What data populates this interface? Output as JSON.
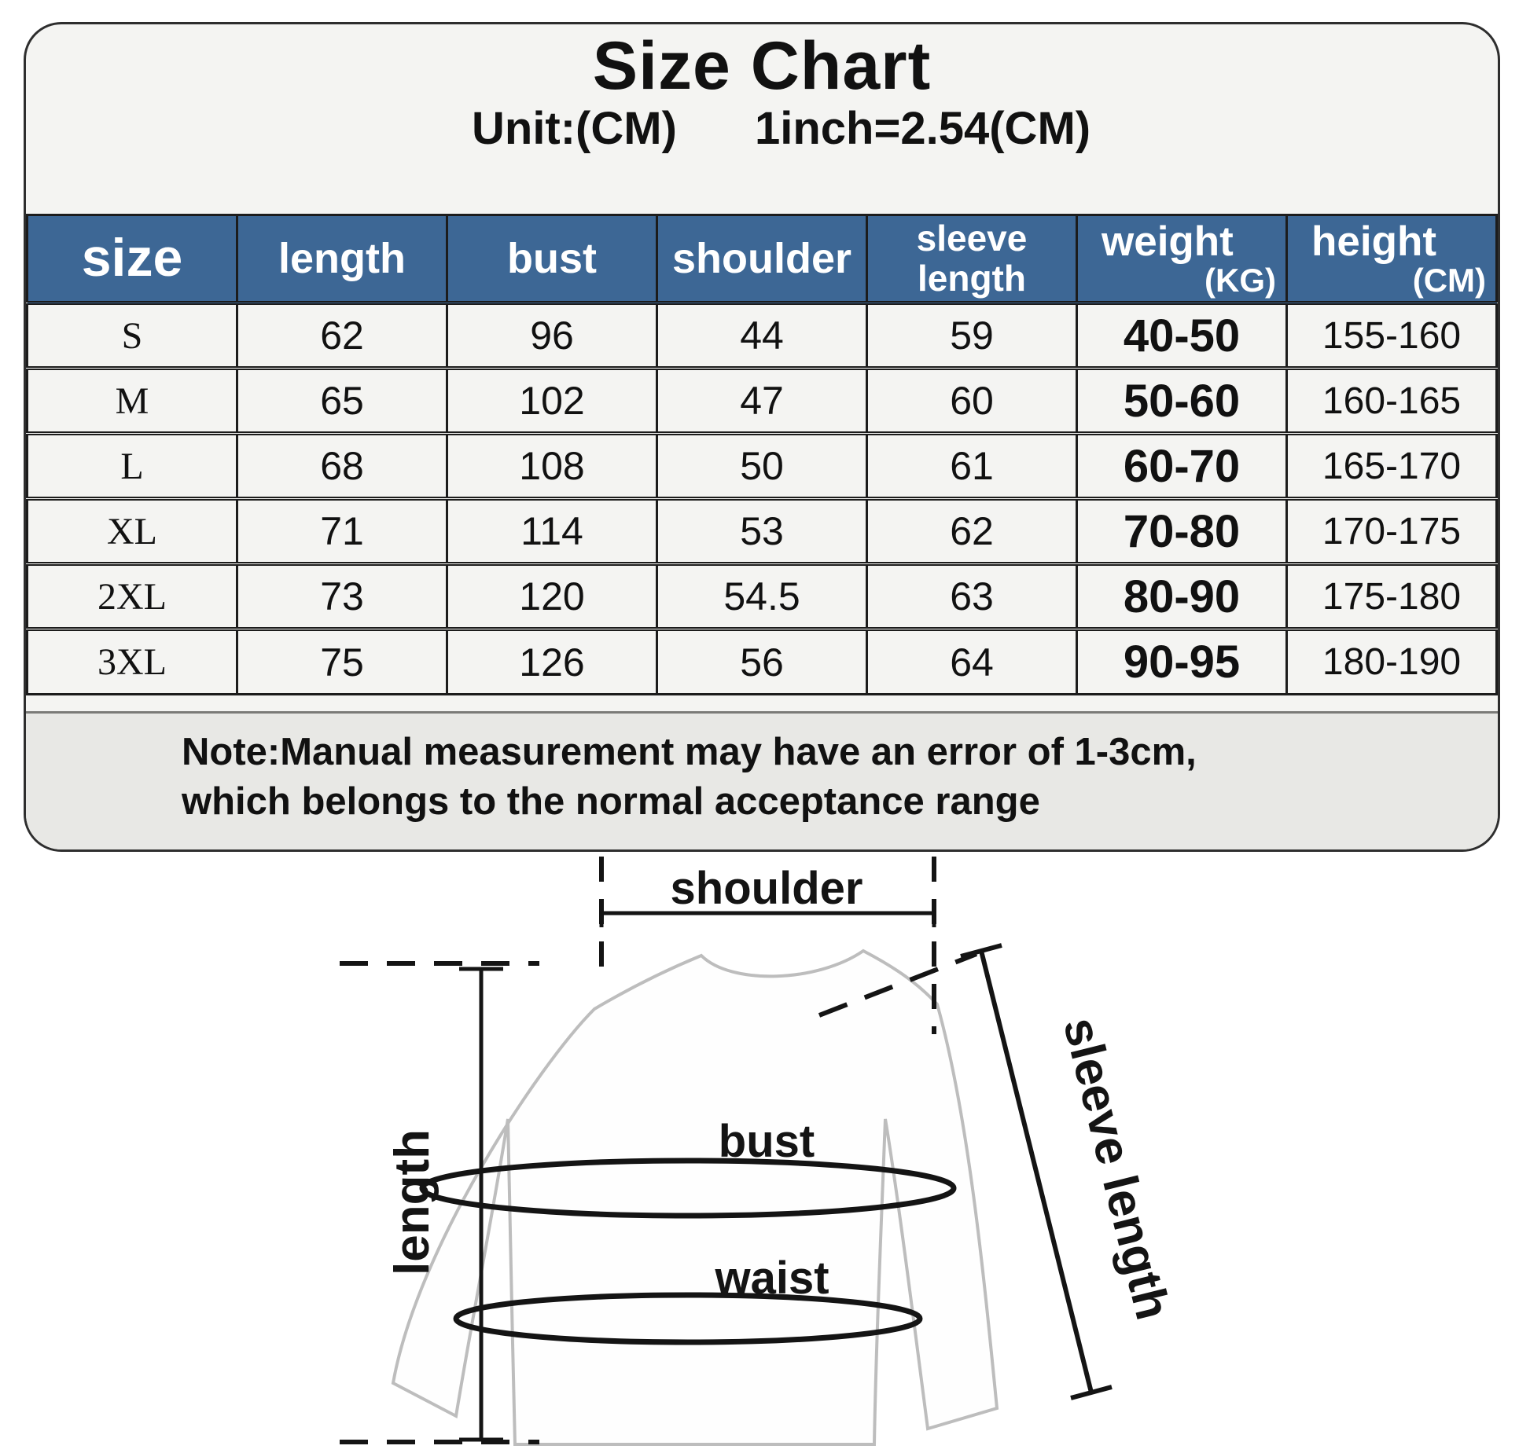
{
  "title": "Size Chart",
  "subtitle": {
    "unit": "Unit:(CM)",
    "conversion": "1inch=2.54(CM)"
  },
  "table": {
    "headers": [
      {
        "key": "size",
        "label": "size"
      },
      {
        "key": "length",
        "label": "length"
      },
      {
        "key": "bust",
        "label": "bust"
      },
      {
        "key": "shoulder",
        "label": "shoulder"
      },
      {
        "key": "sleeve-length",
        "lines": [
          "sleeve",
          "length"
        ]
      },
      {
        "key": "weight",
        "label": "weight",
        "sub": "(KG)"
      },
      {
        "key": "height",
        "label": "height",
        "sub": "(CM)"
      }
    ],
    "rows": [
      [
        "S",
        "62",
        "96",
        "44",
        "59",
        "40-50",
        "155-160"
      ],
      [
        "M",
        "65",
        "102",
        "47",
        "60",
        "50-60",
        "160-165"
      ],
      [
        "L",
        "68",
        "108",
        "50",
        "61",
        "60-70",
        "165-170"
      ],
      [
        "XL",
        "71",
        "114",
        "53",
        "62",
        "70-80",
        "170-175"
      ],
      [
        "2XL",
        "73",
        "120",
        "54.5",
        "63",
        "80-90",
        "175-180"
      ],
      [
        "3XL",
        "75",
        "126",
        "56",
        "64",
        "90-95",
        "180-190"
      ]
    ]
  },
  "note": {
    "line1": "Note:Manual measurement may have an error of 1-3cm,",
    "line2": "which belongs to the normal acceptance range"
  },
  "diagram": {
    "labels": {
      "shoulder": "shoulder",
      "length": "length",
      "bust": "bust",
      "waist": "waist",
      "sleeve_length": "sleeve length"
    }
  },
  "colors": {
    "header_bg": "#3d6795",
    "header_text": "#ffffff",
    "panel_bg": "#f4f4f2",
    "note_bg": "#e8e8e5",
    "border": "#1c1c1c",
    "shirt_outline": "#bdbdbd"
  }
}
